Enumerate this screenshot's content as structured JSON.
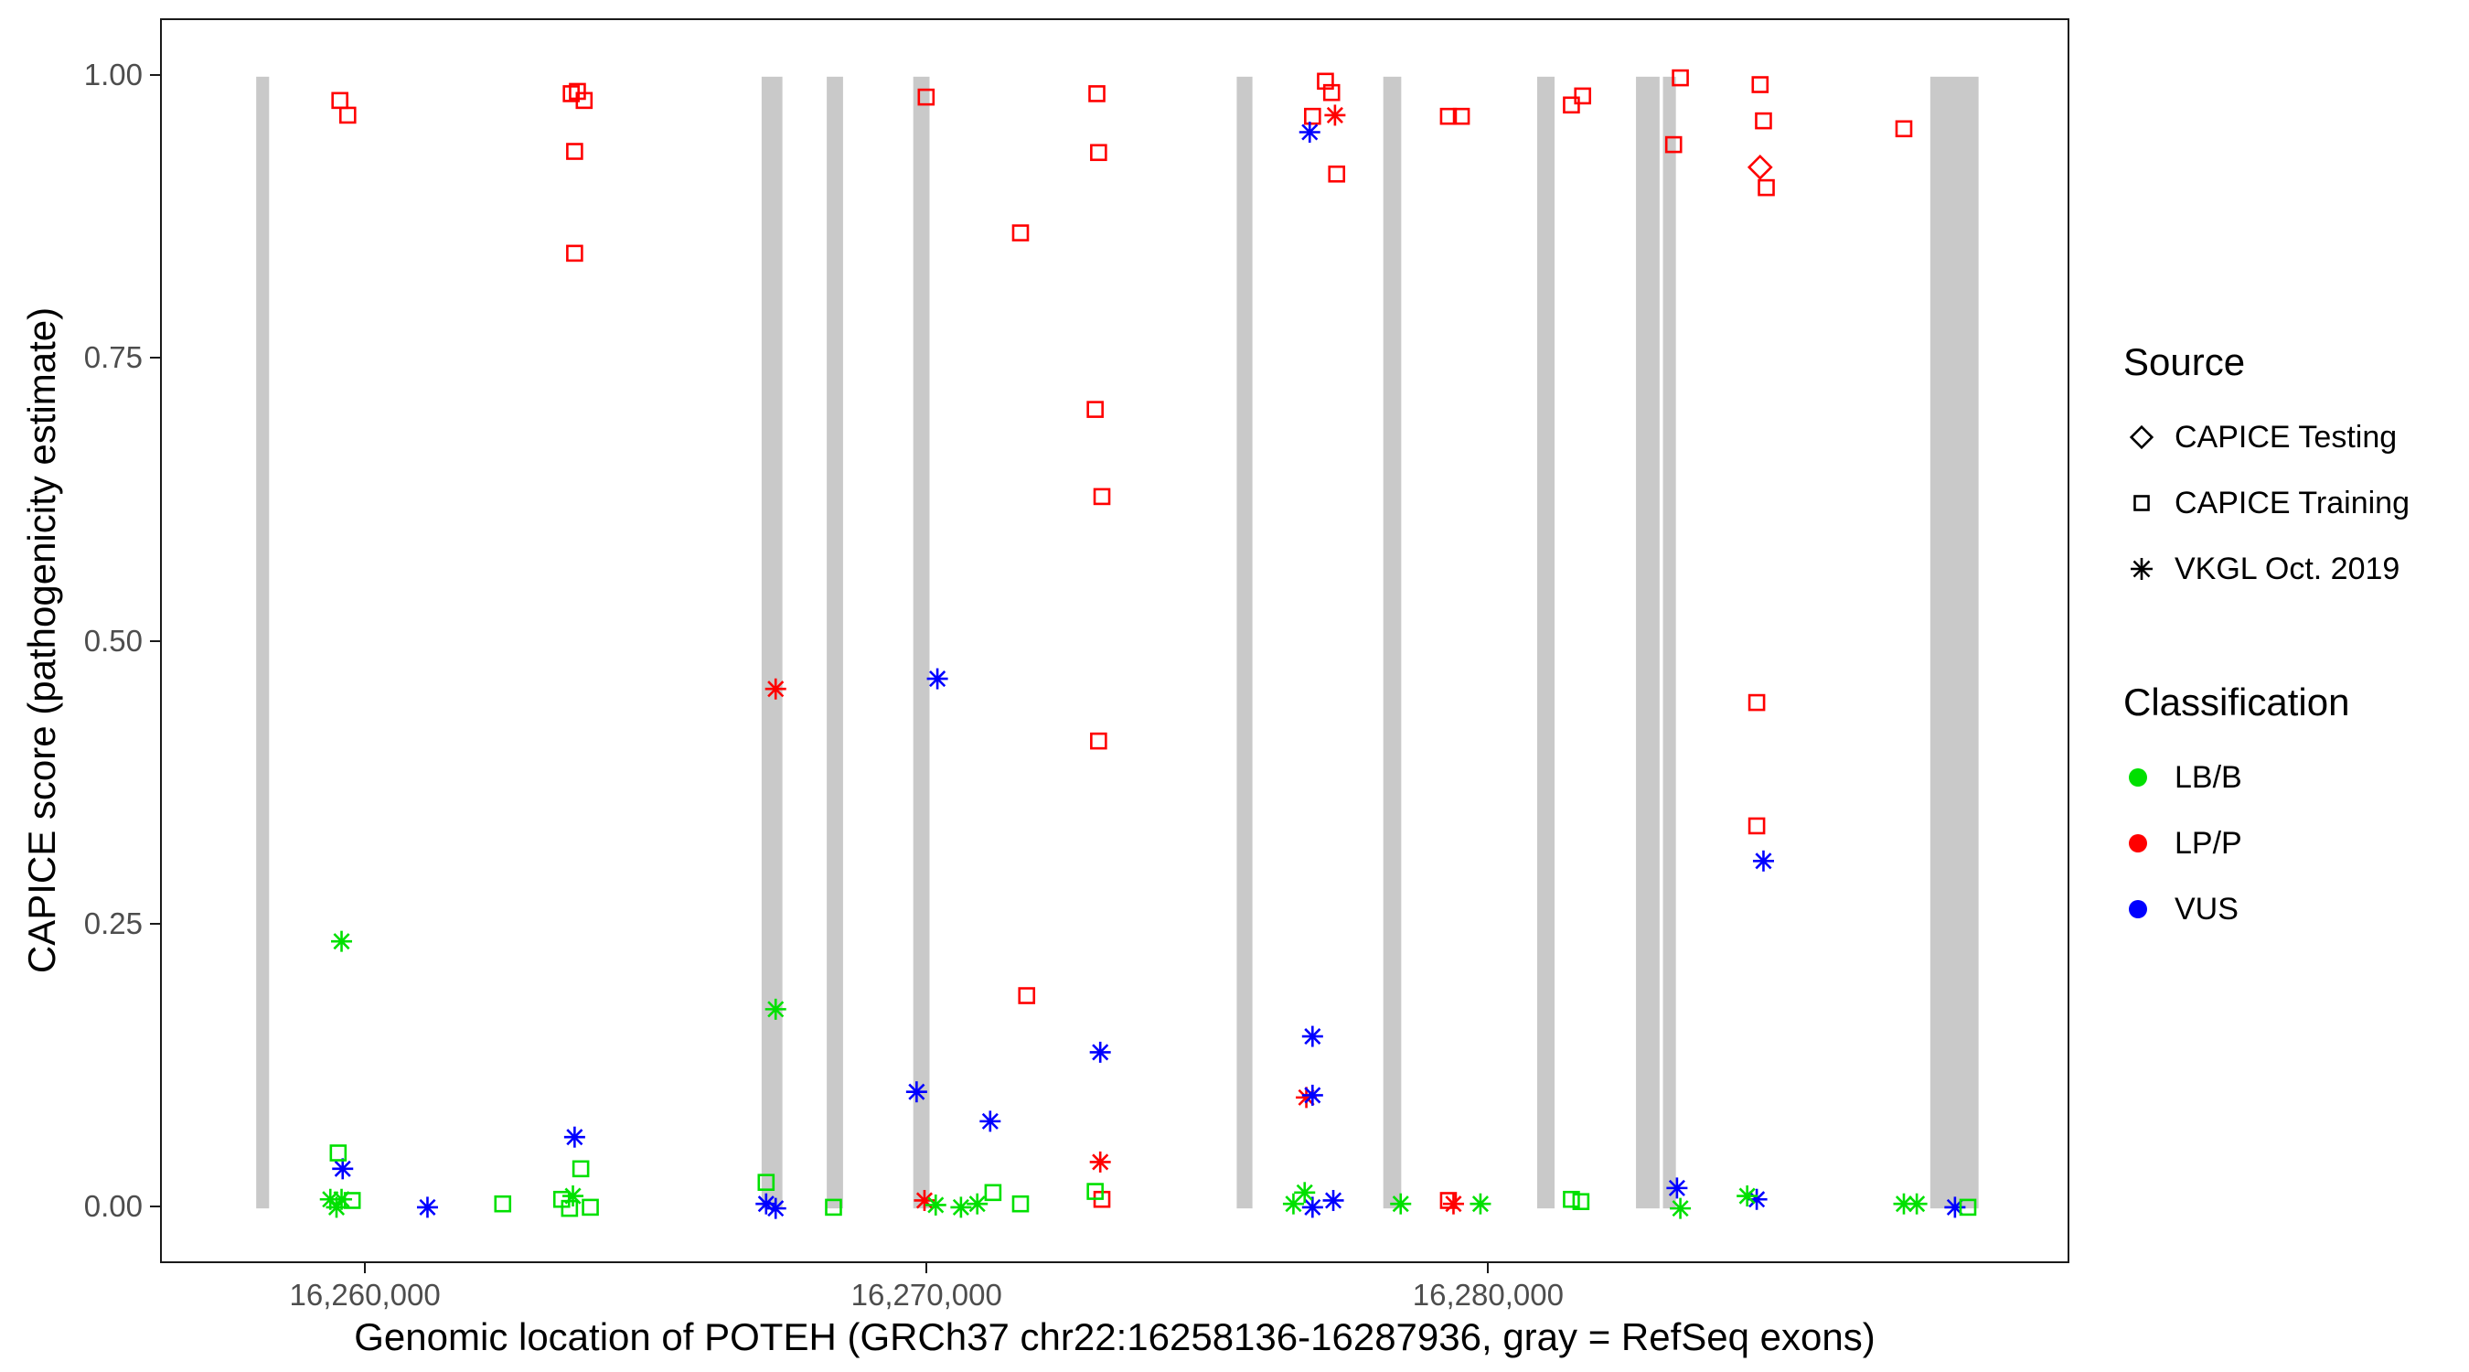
{
  "legend": {
    "source": {
      "title": "Source",
      "items": [
        {
          "label": "CAPICE Testing",
          "shape": "diamond"
        },
        {
          "label": "CAPICE Training",
          "shape": "square"
        },
        {
          "label": "VKGL Oct. 2019",
          "shape": "asterisk"
        }
      ]
    },
    "classification": {
      "title": "Classification",
      "items": [
        {
          "label": "LB/B",
          "color": "#00E000"
        },
        {
          "label": "LP/P",
          "color": "#FF0000"
        },
        {
          "label": "VUS",
          "color": "#0000FF"
        }
      ]
    }
  },
  "chart_data": {
    "type": "scatter",
    "title": "",
    "xlabel": "Genomic location of POTEH (GRCh37 chr22:16258136-16287936, gray = RefSeq exons)",
    "ylabel": "CAPICE score (pathogenicity estimate)",
    "x_range": [
      16256350,
      16290350
    ],
    "y_range": [
      -0.05,
      1.05
    ],
    "x_ticks": [
      {
        "value": 16260000,
        "label": "16,260,000"
      },
      {
        "value": 16270000,
        "label": "16,270,000"
      },
      {
        "value": 16280000,
        "label": "16,280,000"
      }
    ],
    "y_ticks": [
      {
        "value": 0.0,
        "label": "0.00"
      },
      {
        "value": 0.25,
        "label": "0.25"
      },
      {
        "value": 0.5,
        "label": "0.50"
      },
      {
        "value": 0.75,
        "label": "0.75"
      },
      {
        "value": 1.0,
        "label": "1.00"
      }
    ],
    "exon_color": "#C9C9C9",
    "exons_note": "gray bars = RefSeq exons, drawn from score 0 to 1",
    "exons": [
      [
        16258030,
        16258260
      ],
      [
        16267030,
        16267400
      ],
      [
        16268190,
        16268480
      ],
      [
        16269730,
        16270020
      ],
      [
        16275490,
        16275770
      ],
      [
        16278100,
        16278420
      ],
      [
        16280840,
        16281150
      ],
      [
        16282600,
        16283020
      ],
      [
        16283080,
        16283310
      ],
      [
        16287840,
        16288700
      ]
    ],
    "classification_colors": {
      "LB/B": "#00E000",
      "LP/P": "#FF0000",
      "VUS": "#0000FF"
    },
    "shape_map": {
      "CAPICE Testing": "diamond",
      "CAPICE Training": "square",
      "VKGL Oct. 2019": "asterisk"
    },
    "points": [
      {
        "x": 16259520,
        "y": 0.979,
        "shape": "square",
        "cls": "LP/P"
      },
      {
        "x": 16259660,
        "y": 0.966,
        "shape": "square",
        "cls": "LP/P"
      },
      {
        "x": 16263640,
        "y": 0.985,
        "shape": "square",
        "cls": "LP/P"
      },
      {
        "x": 16263750,
        "y": 0.987,
        "shape": "square",
        "cls": "LP/P"
      },
      {
        "x": 16263870,
        "y": 0.979,
        "shape": "square",
        "cls": "LP/P"
      },
      {
        "x": 16263700,
        "y": 0.934,
        "shape": "square",
        "cls": "LP/P"
      },
      {
        "x": 16263700,
        "y": 0.844,
        "shape": "square",
        "cls": "LP/P"
      },
      {
        "x": 16269960,
        "y": 0.982,
        "shape": "square",
        "cls": "LP/P"
      },
      {
        "x": 16271640,
        "y": 0.862,
        "shape": "square",
        "cls": "LP/P"
      },
      {
        "x": 16273000,
        "y": 0.985,
        "shape": "square",
        "cls": "LP/P"
      },
      {
        "x": 16273030,
        "y": 0.933,
        "shape": "square",
        "cls": "LP/P"
      },
      {
        "x": 16272970,
        "y": 0.706,
        "shape": "square",
        "cls": "LP/P"
      },
      {
        "x": 16273090,
        "y": 0.629,
        "shape": "square",
        "cls": "LP/P"
      },
      {
        "x": 16273030,
        "y": 0.413,
        "shape": "square",
        "cls": "LP/P"
      },
      {
        "x": 16271750,
        "y": 0.188,
        "shape": "square",
        "cls": "LP/P"
      },
      {
        "x": 16277070,
        "y": 0.996,
        "shape": "square",
        "cls": "LP/P"
      },
      {
        "x": 16277180,
        "y": 0.986,
        "shape": "square",
        "cls": "LP/P"
      },
      {
        "x": 16276840,
        "y": 0.965,
        "shape": "square",
        "cls": "LP/P"
      },
      {
        "x": 16277270,
        "y": 0.914,
        "shape": "square",
        "cls": "LP/P"
      },
      {
        "x": 16279260,
        "y": 0.965,
        "shape": "square",
        "cls": "LP/P"
      },
      {
        "x": 16279490,
        "y": 0.965,
        "shape": "square",
        "cls": "LP/P"
      },
      {
        "x": 16281450,
        "y": 0.975,
        "shape": "square",
        "cls": "LP/P"
      },
      {
        "x": 16281650,
        "y": 0.983,
        "shape": "square",
        "cls": "LP/P"
      },
      {
        "x": 16283390,
        "y": 0.999,
        "shape": "square",
        "cls": "LP/P"
      },
      {
        "x": 16283270,
        "y": 0.94,
        "shape": "square",
        "cls": "LP/P"
      },
      {
        "x": 16284810,
        "y": 0.993,
        "shape": "square",
        "cls": "LP/P"
      },
      {
        "x": 16284870,
        "y": 0.961,
        "shape": "square",
        "cls": "LP/P"
      },
      {
        "x": 16284920,
        "y": 0.902,
        "shape": "square",
        "cls": "LP/P"
      },
      {
        "x": 16284750,
        "y": 0.447,
        "shape": "square",
        "cls": "LP/P"
      },
      {
        "x": 16284750,
        "y": 0.338,
        "shape": "square",
        "cls": "LP/P"
      },
      {
        "x": 16287370,
        "y": 0.954,
        "shape": "square",
        "cls": "LP/P"
      },
      {
        "x": 16273090,
        "y": 0.008,
        "shape": "square",
        "cls": "LP/P"
      },
      {
        "x": 16279260,
        "y": 0.007,
        "shape": "square",
        "cls": "LP/P"
      },
      {
        "x": 16284810,
        "y": 0.92,
        "shape": "diamond",
        "cls": "LP/P"
      },
      {
        "x": 16277240,
        "y": 0.966,
        "shape": "asterisk",
        "cls": "LP/P"
      },
      {
        "x": 16267280,
        "y": 0.459,
        "shape": "asterisk",
        "cls": "LP/P"
      },
      {
        "x": 16273060,
        "y": 0.041,
        "shape": "asterisk",
        "cls": "LP/P"
      },
      {
        "x": 16276730,
        "y": 0.098,
        "shape": "asterisk",
        "cls": "LP/P"
      },
      {
        "x": 16269930,
        "y": 0.007,
        "shape": "asterisk",
        "cls": "LP/P"
      },
      {
        "x": 16279350,
        "y": 0.004,
        "shape": "asterisk",
        "cls": "LP/P"
      },
      {
        "x": 16276790,
        "y": 0.951,
        "shape": "asterisk",
        "cls": "VUS"
      },
      {
        "x": 16284870,
        "y": 0.307,
        "shape": "asterisk",
        "cls": "VUS"
      },
      {
        "x": 16270160,
        "y": 0.468,
        "shape": "asterisk",
        "cls": "VUS"
      },
      {
        "x": 16269790,
        "y": 0.103,
        "shape": "asterisk",
        "cls": "VUS"
      },
      {
        "x": 16271100,
        "y": 0.077,
        "shape": "asterisk",
        "cls": "VUS"
      },
      {
        "x": 16273060,
        "y": 0.138,
        "shape": "asterisk",
        "cls": "VUS"
      },
      {
        "x": 16276840,
        "y": 0.152,
        "shape": "asterisk",
        "cls": "VUS"
      },
      {
        "x": 16276840,
        "y": 0.1,
        "shape": "asterisk",
        "cls": "VUS"
      },
      {
        "x": 16263700,
        "y": 0.063,
        "shape": "asterisk",
        "cls": "VUS"
      },
      {
        "x": 16259570,
        "y": 0.035,
        "shape": "asterisk",
        "cls": "VUS"
      },
      {
        "x": 16261080,
        "y": 0.001,
        "shape": "asterisk",
        "cls": "VUS"
      },
      {
        "x": 16267110,
        "y": 0.004,
        "shape": "asterisk",
        "cls": "VUS"
      },
      {
        "x": 16267280,
        "y": 0.0,
        "shape": "asterisk",
        "cls": "VUS"
      },
      {
        "x": 16276840,
        "y": 0.001,
        "shape": "asterisk",
        "cls": "VUS"
      },
      {
        "x": 16277210,
        "y": 0.007,
        "shape": "asterisk",
        "cls": "VUS"
      },
      {
        "x": 16283330,
        "y": 0.018,
        "shape": "asterisk",
        "cls": "VUS"
      },
      {
        "x": 16284750,
        "y": 0.008,
        "shape": "asterisk",
        "cls": "VUS"
      },
      {
        "x": 16288280,
        "y": 0.001,
        "shape": "asterisk",
        "cls": "VUS"
      },
      {
        "x": 16259550,
        "y": 0.236,
        "shape": "asterisk",
        "cls": "LB/B"
      },
      {
        "x": 16267280,
        "y": 0.176,
        "shape": "asterisk",
        "cls": "LB/B"
      },
      {
        "x": 16259350,
        "y": 0.008,
        "shape": "asterisk",
        "cls": "LB/B"
      },
      {
        "x": 16259550,
        "y": 0.008,
        "shape": "asterisk",
        "cls": "LB/B"
      },
      {
        "x": 16259460,
        "y": 0.001,
        "shape": "asterisk",
        "cls": "LB/B"
      },
      {
        "x": 16263670,
        "y": 0.011,
        "shape": "asterisk",
        "cls": "LB/B"
      },
      {
        "x": 16270130,
        "y": 0.003,
        "shape": "asterisk",
        "cls": "LB/B"
      },
      {
        "x": 16270580,
        "y": 0.001,
        "shape": "asterisk",
        "cls": "LB/B"
      },
      {
        "x": 16270870,
        "y": 0.004,
        "shape": "asterisk",
        "cls": "LB/B"
      },
      {
        "x": 16276700,
        "y": 0.014,
        "shape": "asterisk",
        "cls": "LB/B"
      },
      {
        "x": 16276500,
        "y": 0.004,
        "shape": "asterisk",
        "cls": "LB/B"
      },
      {
        "x": 16278410,
        "y": 0.004,
        "shape": "asterisk",
        "cls": "LB/B"
      },
      {
        "x": 16279830,
        "y": 0.004,
        "shape": "asterisk",
        "cls": "LB/B"
      },
      {
        "x": 16283390,
        "y": 0.0,
        "shape": "asterisk",
        "cls": "LB/B"
      },
      {
        "x": 16284580,
        "y": 0.011,
        "shape": "asterisk",
        "cls": "LB/B"
      },
      {
        "x": 16287370,
        "y": 0.004,
        "shape": "asterisk",
        "cls": "LB/B"
      },
      {
        "x": 16287600,
        "y": 0.004,
        "shape": "asterisk",
        "cls": "LB/B"
      },
      {
        "x": 16259490,
        "y": 0.049,
        "shape": "square",
        "cls": "LB/B"
      },
      {
        "x": 16259740,
        "y": 0.007,
        "shape": "square",
        "cls": "LB/B"
      },
      {
        "x": 16262420,
        "y": 0.004,
        "shape": "square",
        "cls": "LB/B"
      },
      {
        "x": 16263810,
        "y": 0.035,
        "shape": "square",
        "cls": "LB/B"
      },
      {
        "x": 16263470,
        "y": 0.008,
        "shape": "square",
        "cls": "LB/B"
      },
      {
        "x": 16263610,
        "y": 0.0,
        "shape": "square",
        "cls": "LB/B"
      },
      {
        "x": 16263980,
        "y": 0.001,
        "shape": "square",
        "cls": "LB/B"
      },
      {
        "x": 16267110,
        "y": 0.023,
        "shape": "square",
        "cls": "LB/B"
      },
      {
        "x": 16268310,
        "y": 0.001,
        "shape": "square",
        "cls": "LB/B"
      },
      {
        "x": 16271150,
        "y": 0.014,
        "shape": "square",
        "cls": "LB/B"
      },
      {
        "x": 16271640,
        "y": 0.004,
        "shape": "square",
        "cls": "LB/B"
      },
      {
        "x": 16272970,
        "y": 0.015,
        "shape": "square",
        "cls": "LB/B"
      },
      {
        "x": 16281450,
        "y": 0.008,
        "shape": "square",
        "cls": "LB/B"
      },
      {
        "x": 16281620,
        "y": 0.006,
        "shape": "square",
        "cls": "LB/B"
      },
      {
        "x": 16288510,
        "y": 0.001,
        "shape": "square",
        "cls": "LB/B"
      }
    ]
  }
}
